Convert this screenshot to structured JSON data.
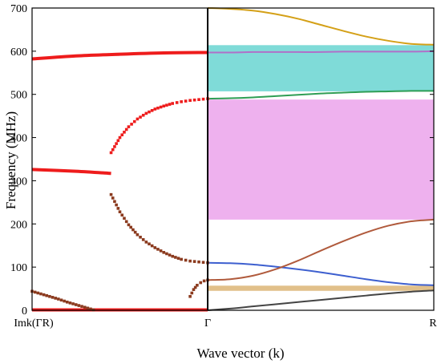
{
  "chart_data": {
    "type": "line",
    "title": "",
    "xlabel": "Wave vector (k)",
    "ylabel": "Frequency (MHz)",
    "ylim": [
      0,
      700
    ],
    "yticks": [
      0,
      100,
      200,
      300,
      400,
      500,
      600,
      700
    ],
    "xticks": [
      "Imk(ΓR)",
      "Γ",
      "R"
    ],
    "grid": false,
    "legend": "none",
    "bands": [
      {
        "y_from": 507,
        "y_to": 614,
        "color": "#7fdbd8"
      },
      {
        "y_from": 210,
        "y_to": 488,
        "color": "#eeb1ee"
      },
      {
        "y_from": 45,
        "y_to": 57,
        "color": "#e1c08a"
      }
    ],
    "right_panel": {
      "k": [
        0.0,
        0.1,
        0.2,
        0.3,
        0.4,
        0.5,
        0.6,
        0.7,
        0.8,
        0.9,
        1.0
      ],
      "curves": [
        {
          "color": "#444444",
          "values": [
            0,
            4,
            9,
            14,
            19,
            24,
            29,
            34,
            39,
            43,
            46
          ]
        },
        {
          "color": "#3d5fcf",
          "values": [
            110,
            109,
            106,
            101,
            95,
            88,
            80,
            72,
            65,
            60,
            58
          ]
        },
        {
          "color": "#b05a3c",
          "values": [
            70,
            72,
            80,
            95,
            115,
            138,
            160,
            180,
            196,
            206,
            210
          ]
        },
        {
          "color": "#2f9e55",
          "values": [
            490,
            491,
            493,
            496,
            499,
            502,
            504,
            506,
            507,
            508,
            508
          ]
        },
        {
          "color": "#b070c8",
          "values": [
            597,
            597,
            598,
            598,
            598,
            598,
            599,
            599,
            599,
            599,
            600
          ]
        },
        {
          "color": "#d4a017",
          "values": [
            700,
            698,
            694,
            686,
            675,
            661,
            647,
            634,
            624,
            617,
            615
          ]
        }
      ]
    },
    "left_panel": {
      "red_lines": [
        {
          "k": [
            -1.0,
            -0.75,
            -0.5,
            -0.25,
            0.0
          ],
          "values": [
            582,
            589,
            593,
            596,
            597
          ]
        },
        {
          "k": [
            -1.0,
            -0.75,
            -0.55
          ],
          "values": [
            326,
            322,
            317
          ]
        },
        {
          "k": [
            -1.0,
            -0.75,
            -0.5,
            -0.25,
            0.0
          ],
          "values": [
            1,
            1,
            1,
            1,
            1
          ]
        }
      ],
      "red_markers": [
        {
          "k": [
            -0.55,
            -0.5,
            -0.45,
            -0.4,
            -0.35,
            -0.3,
            -0.25,
            -0.2,
            -0.15,
            -0.1,
            -0.05,
            0.0
          ],
          "values": [
            365,
            400,
            425,
            443,
            456,
            466,
            473,
            479,
            483,
            486,
            488,
            490
          ]
        }
      ],
      "brown_markers": [
        {
          "k": [
            -0.55,
            -0.5,
            -0.45,
            -0.4,
            -0.35,
            -0.3,
            -0.25,
            -0.2,
            -0.15,
            -0.1,
            -0.05,
            0.0
          ],
          "values": [
            268,
            228,
            198,
            175,
            158,
            145,
            134,
            125,
            118,
            114,
            112,
            110
          ]
        },
        {
          "k": [
            -0.1,
            -0.08,
            -0.06,
            -0.04,
            -0.02,
            0.0
          ],
          "values": [
            32,
            48,
            58,
            64,
            68,
            70
          ]
        },
        {
          "k": [
            -1.0,
            -0.95,
            -0.9,
            -0.85,
            -0.8,
            -0.75,
            -0.7,
            -0.65
          ],
          "values": [
            44,
            38,
            32,
            26,
            19,
            13,
            7,
            1
          ]
        }
      ]
    }
  }
}
